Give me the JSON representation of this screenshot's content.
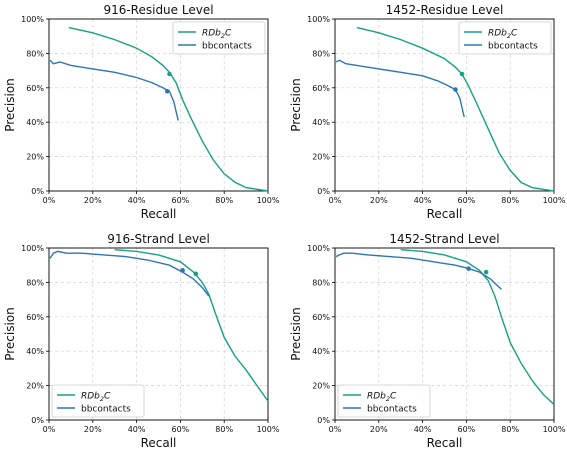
{
  "colors": {
    "rdb": "#16a085",
    "bb": "#2e75b6",
    "grid": "#d0d0d0",
    "axis": "#000000"
  },
  "chart_data": [
    {
      "type": "line",
      "title": "916-Residue Level",
      "xlabel": "Recall",
      "ylabel": "Precision",
      "xlim": [
        0,
        1
      ],
      "ylim": [
        0,
        1
      ],
      "xticks": [
        "0%",
        "20%",
        "40%",
        "60%",
        "80%",
        "100%"
      ],
      "yticks": [
        "0%",
        "20%",
        "40%",
        "60%",
        "80%",
        "100%"
      ],
      "grid": true,
      "legend_position": "top-right",
      "series": [
        {
          "name": "RDb2C",
          "name_main": "RDb",
          "name_sub": "2",
          "name_tail": "C",
          "color": "#16a085",
          "x": [
            0.09,
            0.2,
            0.3,
            0.4,
            0.47,
            0.52,
            0.55,
            0.58,
            0.61,
            0.65,
            0.7,
            0.75,
            0.8,
            0.85,
            0.9,
            0.95,
            1.0
          ],
          "y": [
            0.95,
            0.92,
            0.88,
            0.83,
            0.78,
            0.73,
            0.69,
            0.63,
            0.53,
            0.42,
            0.29,
            0.18,
            0.1,
            0.05,
            0.02,
            0.01,
            0.0
          ],
          "marker": {
            "x": 0.55,
            "y": 0.68
          }
        },
        {
          "name": "bbcontacts",
          "color": "#2e75b6",
          "x": [
            0.005,
            0.02,
            0.05,
            0.1,
            0.2,
            0.3,
            0.4,
            0.47,
            0.52,
            0.55,
            0.57,
            0.59
          ],
          "y": [
            0.76,
            0.74,
            0.75,
            0.73,
            0.71,
            0.69,
            0.66,
            0.63,
            0.6,
            0.58,
            0.52,
            0.41
          ],
          "marker": {
            "x": 0.54,
            "y": 0.58
          }
        }
      ]
    },
    {
      "type": "line",
      "title": "1452-Residue Level",
      "xlabel": "Recall",
      "ylabel": "Precision",
      "xlim": [
        0,
        1
      ],
      "ylim": [
        0,
        1
      ],
      "xticks": [
        "0%",
        "20%",
        "40%",
        "60%",
        "80%",
        "100%"
      ],
      "yticks": [
        "0%",
        "20%",
        "40%",
        "60%",
        "80%",
        "100%"
      ],
      "grid": true,
      "legend_position": "top-right",
      "series": [
        {
          "name": "RDb2C",
          "name_main": "RDb",
          "name_sub": "2",
          "name_tail": "C",
          "color": "#16a085",
          "x": [
            0.1,
            0.2,
            0.3,
            0.4,
            0.5,
            0.55,
            0.58,
            0.61,
            0.65,
            0.7,
            0.75,
            0.8,
            0.85,
            0.9,
            0.95,
            1.0
          ],
          "y": [
            0.95,
            0.92,
            0.88,
            0.83,
            0.77,
            0.72,
            0.68,
            0.61,
            0.5,
            0.36,
            0.22,
            0.12,
            0.05,
            0.02,
            0.01,
            0.0
          ],
          "marker": {
            "x": 0.58,
            "y": 0.68
          }
        },
        {
          "name": "bbcontacts",
          "color": "#2e75b6",
          "x": [
            0.005,
            0.02,
            0.05,
            0.1,
            0.2,
            0.3,
            0.4,
            0.47,
            0.52,
            0.55,
            0.57,
            0.59
          ],
          "y": [
            0.75,
            0.76,
            0.74,
            0.73,
            0.71,
            0.69,
            0.67,
            0.64,
            0.61,
            0.59,
            0.54,
            0.43
          ],
          "marker": {
            "x": 0.55,
            "y": 0.59
          }
        }
      ]
    },
    {
      "type": "line",
      "title": "916-Strand Level",
      "xlabel": "Recall",
      "ylabel": "Precision",
      "xlim": [
        0,
        1
      ],
      "ylim": [
        0,
        1
      ],
      "xticks": [
        "0%",
        "20%",
        "40%",
        "60%",
        "80%",
        "100%"
      ],
      "yticks": [
        "0%",
        "20%",
        "40%",
        "60%",
        "80%",
        "100%"
      ],
      "grid": true,
      "legend_position": "bottom-left",
      "series": [
        {
          "name": "RDb2C",
          "name_main": "RDb",
          "name_sub": "2",
          "name_tail": "C",
          "color": "#16a085",
          "x": [
            0.3,
            0.4,
            0.5,
            0.6,
            0.66,
            0.7,
            0.73,
            0.76,
            0.8,
            0.85,
            0.9,
            0.95,
            1.0
          ],
          "y": [
            0.99,
            0.98,
            0.96,
            0.92,
            0.86,
            0.8,
            0.73,
            0.62,
            0.48,
            0.37,
            0.29,
            0.2,
            0.11
          ],
          "marker": {
            "x": 0.67,
            "y": 0.85
          }
        },
        {
          "name": "bbcontacts",
          "color": "#2e75b6",
          "x": [
            0.005,
            0.02,
            0.04,
            0.08,
            0.15,
            0.25,
            0.35,
            0.45,
            0.55,
            0.61,
            0.66,
            0.7,
            0.73
          ],
          "y": [
            0.94,
            0.97,
            0.98,
            0.97,
            0.97,
            0.96,
            0.95,
            0.93,
            0.9,
            0.86,
            0.82,
            0.77,
            0.72
          ],
          "marker": {
            "x": 0.61,
            "y": 0.87
          }
        }
      ]
    },
    {
      "type": "line",
      "title": "1452-Strand Level",
      "xlabel": "Recall",
      "ylabel": "Precision",
      "xlim": [
        0,
        1
      ],
      "ylim": [
        0,
        1
      ],
      "xticks": [
        "0%",
        "20%",
        "40%",
        "60%",
        "80%",
        "100%"
      ],
      "yticks": [
        "0%",
        "20%",
        "40%",
        "60%",
        "80%",
        "100%"
      ],
      "grid": true,
      "legend_position": "bottom-left",
      "series": [
        {
          "name": "RDb2C",
          "name_main": "RDb",
          "name_sub": "2",
          "name_tail": "C",
          "color": "#16a085",
          "x": [
            0.3,
            0.4,
            0.5,
            0.6,
            0.66,
            0.7,
            0.73,
            0.76,
            0.8,
            0.85,
            0.9,
            0.95,
            1.0
          ],
          "y": [
            0.99,
            0.98,
            0.96,
            0.92,
            0.87,
            0.81,
            0.72,
            0.6,
            0.45,
            0.33,
            0.23,
            0.15,
            0.09
          ],
          "marker": {
            "x": 0.69,
            "y": 0.86
          }
        },
        {
          "name": "bbcontacts",
          "color": "#2e75b6",
          "x": [
            0.005,
            0.02,
            0.04,
            0.08,
            0.15,
            0.25,
            0.35,
            0.45,
            0.55,
            0.61,
            0.66,
            0.71,
            0.76
          ],
          "y": [
            0.95,
            0.96,
            0.97,
            0.97,
            0.96,
            0.95,
            0.94,
            0.92,
            0.9,
            0.88,
            0.86,
            0.82,
            0.76
          ],
          "marker": {
            "x": 0.61,
            "y": 0.88
          }
        }
      ]
    }
  ]
}
